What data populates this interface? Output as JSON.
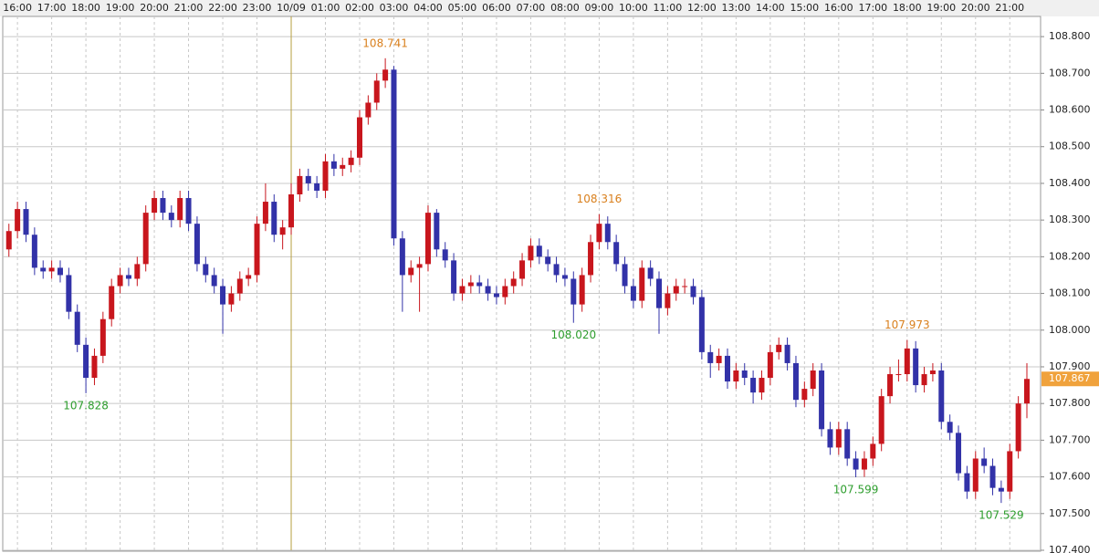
{
  "chart_data": {
    "type": "candlestick",
    "x": [
      -0.25,
      0,
      0.25,
      0.5,
      0.75,
      1,
      1.25,
      1.5,
      1.75,
      2,
      2.25,
      2.5,
      2.75,
      3,
      3.25,
      3.5,
      3.75,
      4,
      4.25,
      4.5,
      4.75,
      5,
      5.25,
      5.5,
      5.75,
      6,
      6.25,
      6.5,
      6.75,
      7,
      7.25,
      7.5,
      7.75,
      8,
      8.25,
      8.5,
      8.75,
      9,
      9.25,
      9.5,
      9.75,
      10,
      10.25,
      10.5,
      10.75,
      11,
      11.25,
      11.5,
      11.75,
      12,
      12.25,
      12.5,
      12.75,
      13,
      13.25,
      13.5,
      13.75,
      14,
      14.25,
      14.5,
      14.75,
      15,
      15.25,
      15.5,
      15.75,
      16,
      16.25,
      16.5,
      16.75,
      17,
      17.25,
      17.5,
      17.75,
      18,
      18.25,
      18.5,
      18.75,
      19,
      19.25,
      19.5,
      19.75,
      20,
      20.25,
      20.5,
      20.75,
      21,
      21.25,
      21.5,
      21.75,
      22,
      22.25,
      22.5,
      22.75,
      23,
      23.25,
      23.5,
      23.75,
      24,
      24.25,
      24.5,
      24.75,
      25,
      25.25,
      25.5,
      25.75,
      26,
      26.25,
      26.5,
      26.75,
      27,
      27.25,
      27.5,
      27.75,
      28,
      28.25,
      28.5,
      28.75,
      29,
      29.25,
      29.5
    ],
    "series": [
      {
        "up_color": "#c8161d",
        "down_color": "#3232a8",
        "open": [
          108.22,
          108.27,
          108.33,
          108.26,
          108.17,
          108.16,
          108.17,
          108.15,
          108.05,
          107.96,
          107.87,
          107.93,
          108.03,
          108.12,
          108.15,
          108.14,
          108.18,
          108.32,
          108.36,
          108.32,
          108.3,
          108.36,
          108.29,
          108.18,
          108.15,
          108.12,
          108.07,
          108.1,
          108.14,
          108.15,
          108.29,
          108.35,
          108.26,
          108.28,
          108.37,
          108.42,
          108.4,
          108.38,
          108.46,
          108.44,
          108.45,
          108.47,
          108.58,
          108.62,
          108.68,
          108.71,
          108.25,
          108.15,
          108.17,
          108.18,
          108.32,
          108.22,
          108.19,
          108.1,
          108.12,
          108.13,
          108.12,
          108.1,
          108.09,
          108.12,
          108.14,
          108.19,
          108.23,
          108.2,
          108.18,
          108.15,
          108.14,
          108.07,
          108.15,
          108.24,
          108.29,
          108.24,
          108.18,
          108.12,
          108.08,
          108.17,
          108.14,
          108.06,
          108.1,
          108.12,
          108.12,
          108.09,
          107.94,
          107.91,
          107.93,
          107.86,
          107.89,
          107.87,
          107.83,
          107.87,
          107.94,
          107.96,
          107.91,
          107.81,
          107.84,
          107.89,
          107.73,
          107.68,
          107.73,
          107.65,
          107.62,
          107.65,
          107.69,
          107.82,
          107.88,
          107.88,
          107.95,
          107.85,
          107.88,
          107.89,
          107.75,
          107.72,
          107.61,
          107.56,
          107.65,
          107.63,
          107.57,
          107.56,
          107.67,
          107.8
        ],
        "high": [
          108.29,
          108.35,
          108.35,
          108.28,
          108.19,
          108.19,
          108.19,
          108.17,
          108.07,
          107.98,
          107.95,
          108.05,
          108.14,
          108.17,
          108.17,
          108.2,
          108.34,
          108.38,
          108.38,
          108.34,
          108.38,
          108.38,
          108.31,
          108.2,
          108.17,
          108.14,
          108.12,
          108.16,
          108.17,
          108.31,
          108.4,
          108.37,
          108.3,
          108.4,
          108.44,
          108.44,
          108.42,
          108.48,
          108.48,
          108.47,
          108.49,
          108.6,
          108.64,
          108.7,
          108.741,
          108.72,
          108.27,
          108.19,
          108.2,
          108.34,
          108.33,
          108.24,
          108.21,
          108.14,
          108.15,
          108.15,
          108.14,
          108.12,
          108.14,
          108.16,
          108.21,
          108.25,
          108.25,
          108.22,
          108.2,
          108.17,
          108.16,
          108.17,
          108.26,
          108.316,
          108.31,
          108.26,
          108.2,
          108.14,
          108.19,
          108.19,
          108.16,
          108.12,
          108.14,
          108.14,
          108.14,
          108.11,
          107.96,
          107.95,
          107.95,
          107.91,
          107.91,
          107.89,
          107.89,
          107.96,
          107.98,
          107.98,
          107.93,
          107.86,
          107.91,
          107.91,
          107.75,
          107.75,
          107.75,
          107.67,
          107.67,
          107.71,
          107.84,
          107.9,
          107.92,
          107.973,
          107.97,
          107.9,
          107.91,
          107.91,
          107.77,
          107.74,
          107.63,
          107.67,
          107.68,
          107.65,
          107.59,
          107.69,
          107.82,
          107.91
        ],
        "low": [
          108.2,
          108.25,
          108.24,
          108.15,
          108.14,
          108.14,
          108.13,
          108.03,
          107.94,
          107.828,
          107.85,
          107.91,
          108.01,
          108.1,
          108.12,
          108.12,
          108.16,
          108.3,
          108.3,
          108.28,
          108.28,
          108.27,
          108.16,
          108.13,
          108.1,
          107.99,
          108.05,
          108.08,
          108.12,
          108.13,
          108.27,
          108.24,
          108.22,
          108.26,
          108.35,
          108.38,
          108.36,
          108.36,
          108.42,
          108.42,
          108.43,
          108.45,
          108.56,
          108.6,
          108.66,
          108.23,
          108.05,
          108.13,
          108.05,
          108.16,
          108.2,
          108.17,
          108.08,
          108.08,
          108.1,
          108.1,
          108.08,
          108.07,
          108.07,
          108.1,
          108.12,
          108.17,
          108.18,
          108.16,
          108.13,
          108.12,
          108.02,
          108.05,
          108.13,
          108.22,
          108.22,
          108.16,
          108.1,
          108.06,
          108.06,
          108.12,
          107.99,
          108.04,
          108.08,
          108.1,
          108.07,
          107.92,
          107.87,
          107.89,
          107.84,
          107.84,
          107.85,
          107.8,
          107.81,
          107.85,
          107.92,
          107.89,
          107.79,
          107.79,
          107.82,
          107.71,
          107.66,
          107.66,
          107.63,
          107.599,
          107.6,
          107.63,
          107.67,
          107.8,
          107.86,
          107.86,
          107.83,
          107.83,
          107.86,
          107.73,
          107.7,
          107.59,
          107.54,
          107.54,
          107.61,
          107.55,
          107.529,
          107.54,
          107.65,
          107.76
        ],
        "close": [
          108.27,
          108.33,
          108.26,
          108.17,
          108.16,
          108.17,
          108.15,
          108.05,
          107.96,
          107.87,
          107.93,
          108.03,
          108.12,
          108.15,
          108.14,
          108.18,
          108.32,
          108.36,
          108.32,
          108.3,
          108.36,
          108.29,
          108.18,
          108.15,
          108.12,
          108.07,
          108.1,
          108.14,
          108.15,
          108.29,
          108.35,
          108.26,
          108.28,
          108.37,
          108.42,
          108.4,
          108.38,
          108.46,
          108.44,
          108.45,
          108.47,
          108.58,
          108.62,
          108.68,
          108.71,
          108.25,
          108.15,
          108.17,
          108.18,
          108.32,
          108.22,
          108.19,
          108.1,
          108.12,
          108.13,
          108.12,
          108.1,
          108.09,
          108.12,
          108.14,
          108.19,
          108.23,
          108.2,
          108.18,
          108.15,
          108.14,
          108.07,
          108.15,
          108.24,
          108.29,
          108.24,
          108.18,
          108.12,
          108.08,
          108.17,
          108.14,
          108.06,
          108.1,
          108.12,
          108.12,
          108.09,
          107.94,
          107.91,
          107.93,
          107.86,
          107.89,
          107.87,
          107.83,
          107.87,
          107.94,
          107.96,
          107.91,
          107.81,
          107.84,
          107.89,
          107.73,
          107.68,
          107.73,
          107.65,
          107.62,
          107.65,
          107.69,
          107.82,
          107.88,
          107.88,
          107.95,
          107.85,
          107.88,
          107.89,
          107.75,
          107.72,
          107.61,
          107.56,
          107.65,
          107.63,
          107.57,
          107.56,
          107.67,
          107.8,
          107.867
        ],
        "high_labels": [
          null,
          null,
          null,
          null,
          null,
          null,
          null,
          null,
          null,
          null,
          null,
          null,
          null,
          null,
          null,
          null,
          null,
          null,
          null,
          null,
          null,
          null,
          null,
          null,
          null,
          null,
          null,
          null,
          null,
          null,
          null,
          null,
          null,
          null,
          null,
          null,
          null,
          null,
          null,
          null,
          null,
          null,
          null,
          null,
          "108.741",
          null,
          null,
          null,
          null,
          null,
          null,
          null,
          null,
          null,
          null,
          null,
          null,
          null,
          null,
          null,
          null,
          null,
          null,
          null,
          null,
          null,
          null,
          null,
          null,
          "108.316",
          null,
          null,
          null,
          null,
          null,
          null,
          null,
          null,
          null,
          null,
          null,
          null,
          null,
          null,
          null,
          null,
          null,
          null,
          null,
          null,
          null,
          null,
          null,
          null,
          null,
          null,
          null,
          null,
          null,
          null,
          null,
          null,
          null,
          null,
          null,
          "107.973",
          null,
          null,
          null,
          null,
          null,
          null,
          null,
          null,
          null,
          null,
          null,
          null,
          null,
          null
        ],
        "low_labels": [
          null,
          null,
          null,
          null,
          null,
          null,
          null,
          null,
          null,
          "107.828",
          null,
          null,
          null,
          null,
          null,
          null,
          null,
          null,
          null,
          null,
          null,
          null,
          null,
          null,
          null,
          null,
          null,
          null,
          null,
          null,
          null,
          null,
          null,
          null,
          null,
          null,
          null,
          null,
          null,
          null,
          null,
          null,
          null,
          null,
          null,
          null,
          null,
          null,
          null,
          null,
          null,
          null,
          null,
          null,
          null,
          null,
          null,
          null,
          null,
          null,
          null,
          null,
          null,
          null,
          null,
          null,
          "108.020",
          null,
          null,
          null,
          null,
          null,
          null,
          null,
          null,
          null,
          null,
          null,
          null,
          null,
          null,
          null,
          null,
          null,
          null,
          null,
          null,
          null,
          null,
          null,
          null,
          null,
          null,
          null,
          null,
          null,
          null,
          null,
          null,
          "107.599",
          null,
          null,
          null,
          null,
          null,
          null,
          null,
          null,
          null,
          null,
          null,
          null,
          null,
          null,
          null,
          null,
          "107.529",
          null,
          null,
          null
        ]
      }
    ],
    "high_label_color": "#d9801e",
    "low_label_color": "#2e9e2e",
    "last_price_color": "#f0a23c",
    "xlim": [
      -0.43,
      29.9
    ],
    "xticks": [
      {
        "value": 0,
        "label": "16:00"
      },
      {
        "value": 1,
        "label": "17:00"
      },
      {
        "value": 2,
        "label": "18:00"
      },
      {
        "value": 3,
        "label": "19:00"
      },
      {
        "value": 4,
        "label": "20:00"
      },
      {
        "value": 5,
        "label": "21:00"
      },
      {
        "value": 6,
        "label": "22:00"
      },
      {
        "value": 7,
        "label": "23:00"
      },
      {
        "value": 8,
        "label": "10/09"
      },
      {
        "value": 9,
        "label": "01:00"
      },
      {
        "value": 10,
        "label": "02:00"
      },
      {
        "value": 11,
        "label": "03:00"
      },
      {
        "value": 12,
        "label": "04:00"
      },
      {
        "value": 13,
        "label": "05:00"
      },
      {
        "value": 14,
        "label": "06:00"
      },
      {
        "value": 15,
        "label": "07:00"
      },
      {
        "value": 16,
        "label": "08:00"
      },
      {
        "value": 17,
        "label": "09:00"
      },
      {
        "value": 18,
        "label": "10:00"
      },
      {
        "value": 19,
        "label": "11:00"
      },
      {
        "value": 20,
        "label": "12:00"
      },
      {
        "value": 21,
        "label": "13:00"
      },
      {
        "value": 22,
        "label": "14:00"
      },
      {
        "value": 23,
        "label": "15:00"
      },
      {
        "value": 24,
        "label": "16:00"
      },
      {
        "value": 25,
        "label": "17:00"
      },
      {
        "value": 26,
        "label": "18:00"
      },
      {
        "value": 27,
        "label": "19:00"
      },
      {
        "value": 28,
        "label": "20:00"
      },
      {
        "value": 29,
        "label": "21:00"
      }
    ],
    "ylim": [
      107.4,
      108.855
    ],
    "yticks": [
      {
        "value": 107.4,
        "label": "107.400"
      },
      {
        "value": 107.5,
        "label": "107.500"
      },
      {
        "value": 107.6,
        "label": "107.600"
      },
      {
        "value": 107.7,
        "label": "107.700"
      },
      {
        "value": 107.8,
        "label": "107.800"
      },
      {
        "value": 107.9,
        "label": "107.900"
      },
      {
        "value": 108.0,
        "label": "108.000"
      },
      {
        "value": 108.1,
        "label": "108.100"
      },
      {
        "value": 108.2,
        "label": "108.200"
      },
      {
        "value": 108.3,
        "label": "108.300"
      },
      {
        "value": 108.4,
        "label": "108.400"
      },
      {
        "value": 108.5,
        "label": "108.500"
      },
      {
        "value": 108.6,
        "label": "108.600"
      },
      {
        "value": 108.7,
        "label": "108.700"
      },
      {
        "value": 108.8,
        "label": "108.800"
      }
    ],
    "grid": true
  }
}
